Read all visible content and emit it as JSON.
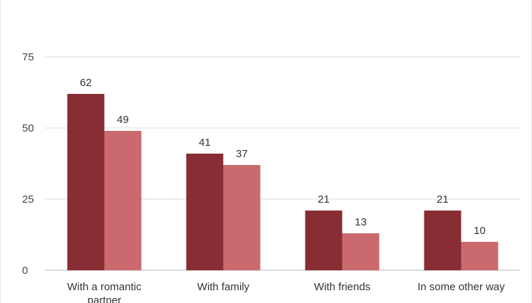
{
  "chart_data": {
    "type": "bar",
    "categories": [
      "With a romantic partner",
      "With family",
      "With friends",
      "In some other way"
    ],
    "category_lines": [
      [
        "With a romantic",
        "partner"
      ],
      [
        "With family"
      ],
      [
        "With friends"
      ],
      [
        "In some other way"
      ]
    ],
    "series": [
      {
        "values": [
          62,
          41,
          21,
          21
        ],
        "color": "#882d33"
      },
      {
        "values": [
          49,
          37,
          13,
          10
        ],
        "color": "#cb6a6e"
      }
    ],
    "yticks": [
      0,
      25,
      50,
      75
    ],
    "ylim": [
      0,
      75
    ],
    "grid": true,
    "gridline_color": "#dddddd",
    "baseline_color": "#bbbbbb"
  }
}
